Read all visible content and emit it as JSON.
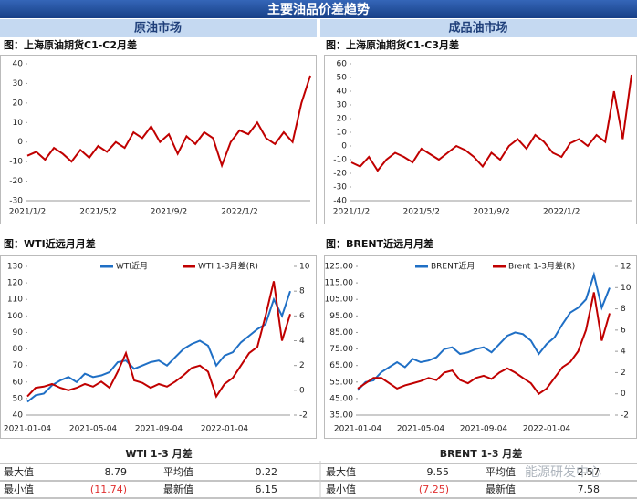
{
  "header": {
    "title": "主要油品价差趋势"
  },
  "sections": [
    "原油市场",
    "成品油市场"
  ],
  "chart_data": [
    {
      "type": "line",
      "title": "图：上海原油期货C1-C2月差",
      "categories": [
        "2021/1/2",
        null,
        null,
        null,
        null,
        null,
        null,
        null,
        "2021/5/2",
        null,
        null,
        null,
        null,
        null,
        null,
        null,
        "2021/9/2",
        null,
        null,
        null,
        null,
        null,
        null,
        null,
        "2022/1/2",
        null,
        null,
        null,
        null,
        null,
        null,
        null,
        null
      ],
      "series": [
        {
          "color": "#c00000",
          "values": [
            -7,
            -5,
            -9,
            -3,
            -6,
            -10,
            -4,
            -8,
            -2,
            -5,
            0,
            -3,
            5,
            2,
            8,
            0,
            4,
            -6,
            3,
            -1,
            5,
            2,
            -12,
            0,
            6,
            4,
            10,
            2,
            -1,
            5,
            0,
            20,
            34
          ]
        }
      ],
      "ylim": [
        -30,
        40
      ],
      "yticks": [
        -30,
        -20,
        -10,
        0,
        10,
        20,
        30,
        40
      ]
    },
    {
      "type": "line",
      "title": "图：上海原油期货C1-C3月差",
      "categories": [
        "2021/1/2",
        null,
        null,
        null,
        null,
        null,
        null,
        null,
        "2021/5/2",
        null,
        null,
        null,
        null,
        null,
        null,
        null,
        "2021/9/2",
        null,
        null,
        null,
        null,
        null,
        null,
        null,
        "2022/1/2",
        null,
        null,
        null,
        null,
        null,
        null,
        null,
        null
      ],
      "series": [
        {
          "color": "#c00000",
          "values": [
            -12,
            -15,
            -8,
            -18,
            -10,
            -5,
            -8,
            -12,
            -2,
            -6,
            -10,
            -5,
            0,
            -3,
            -8,
            -15,
            -5,
            -10,
            0,
            5,
            -2,
            8,
            3,
            -5,
            -8,
            2,
            5,
            0,
            8,
            3,
            40,
            5,
            52
          ]
        }
      ],
      "ylim": [
        -40,
        60
      ],
      "yticks": [
        -40,
        -30,
        -20,
        -10,
        0,
        10,
        20,
        30,
        40,
        50,
        60
      ]
    },
    {
      "type": "line",
      "title": "图：WTI近远月月差",
      "categories": [
        "2021-01-04",
        null,
        null,
        null,
        null,
        null,
        null,
        null,
        "2021-05-04",
        null,
        null,
        null,
        null,
        null,
        null,
        null,
        "2021-09-04",
        null,
        null,
        null,
        null,
        null,
        null,
        null,
        "2022-01-04",
        null,
        null,
        null,
        null,
        null,
        null,
        null,
        null
      ],
      "series": [
        {
          "name": "WTI近月",
          "color": "#1f6fc5",
          "values": [
            48,
            52,
            53,
            58,
            61,
            63,
            60,
            65,
            63,
            64,
            66,
            72,
            73,
            68,
            70,
            72,
            73,
            70,
            75,
            80,
            83,
            85,
            82,
            70,
            76,
            78,
            84,
            88,
            92,
            95,
            110,
            100,
            115
          ]
        },
        {
          "name": "WTI 1-3月差(R)",
          "color": "#c00000",
          "axis": "y2",
          "values": [
            -0.5,
            0.2,
            0.3,
            0.5,
            0.2,
            0,
            0.2,
            0.5,
            0.3,
            0.7,
            0.2,
            1.5,
            3,
            0.8,
            0.6,
            0.2,
            0.5,
            0.3,
            0.7,
            1.2,
            1.8,
            2,
            1.5,
            -0.5,
            0.5,
            1,
            2,
            3,
            3.5,
            6,
            8.79,
            4,
            6.15
          ]
        }
      ],
      "ylim": [
        40,
        130
      ],
      "yticks": [
        40,
        50,
        60,
        70,
        80,
        90,
        100,
        110,
        120,
        130
      ],
      "y2lim": [
        -2,
        10
      ],
      "y2ticks": [
        -2,
        0,
        2,
        4,
        6,
        8,
        10
      ]
    },
    {
      "type": "line",
      "title": "图：BRENT近远月月差",
      "categories": [
        "2021-01-04",
        null,
        null,
        null,
        null,
        null,
        null,
        null,
        "2021-05-04",
        null,
        null,
        null,
        null,
        null,
        null,
        null,
        "2021-09-04",
        null,
        null,
        null,
        null,
        null,
        null,
        null,
        "2022-01-04",
        null,
        null,
        null,
        null,
        null,
        null,
        null,
        null
      ],
      "series": [
        {
          "name": "BRENT近月",
          "color": "#1f6fc5",
          "values": [
            50,
            55,
            56,
            61,
            64,
            67,
            64,
            69,
            67,
            68,
            70,
            75,
            76,
            72,
            73,
            75,
            76,
            73,
            78,
            83,
            85,
            84,
            80,
            72,
            78,
            82,
            90,
            97,
            100,
            105,
            120,
            100,
            112
          ]
        },
        {
          "name": "Brent 1-3月差(R)",
          "color": "#c00000",
          "axis": "y2",
          "values": [
            0.5,
            1,
            1.5,
            1.5,
            1,
            0.5,
            0.8,
            1,
            1.2,
            1.5,
            1.3,
            2,
            2.2,
            1.3,
            1,
            1.5,
            1.7,
            1.4,
            2,
            2.4,
            2,
            1.5,
            1,
            0,
            0.5,
            1.5,
            2.5,
            3,
            4,
            6,
            9.55,
            5,
            7.58
          ]
        }
      ],
      "ylim": [
        35,
        125
      ],
      "yticks": [
        {
          "value": 35,
          "label": "35.00"
        },
        {
          "value": 45,
          "label": "45.00"
        },
        {
          "value": 55,
          "label": "55.00"
        },
        {
          "value": 65,
          "label": "65.00"
        },
        {
          "value": 75,
          "label": "75.00"
        },
        {
          "value": 85,
          "label": "85.00"
        },
        {
          "value": 95,
          "label": "95.00"
        },
        {
          "value": 105,
          "label": "105.00"
        },
        {
          "value": 115,
          "label": "115.00"
        },
        {
          "value": 125,
          "label": "125.00"
        }
      ],
      "y2lim": [
        -2,
        12
      ],
      "y2ticks": [
        -2,
        0,
        2,
        4,
        6,
        8,
        10,
        12
      ]
    }
  ],
  "tables": [
    {
      "title": "WTI 1-3 月差",
      "rows": [
        [
          "最大值",
          "8.79",
          "平均值",
          "0.22"
        ],
        [
          "最小值",
          "(11.74)",
          "最新值",
          "6.15"
        ]
      ]
    },
    {
      "title": "BRENT 1-3 月差",
      "rows": [
        [
          "最大值",
          "9.55",
          "平均值",
          "2.57"
        ],
        [
          "最小值",
          "(7.25)",
          "最新值",
          "7.58"
        ]
      ]
    }
  ],
  "watermark": "能源研发中心"
}
